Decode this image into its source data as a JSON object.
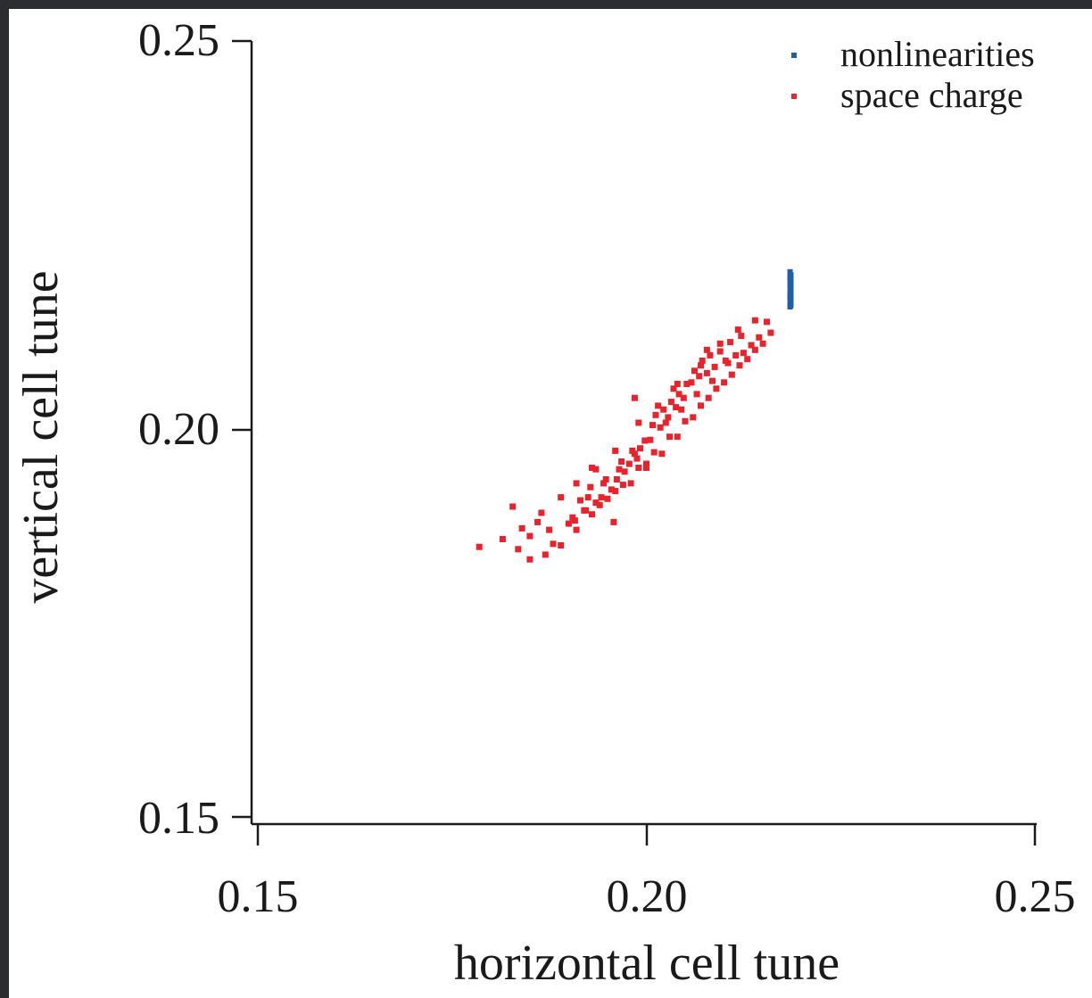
{
  "chart_data": {
    "type": "scatter",
    "title": "",
    "xlabel": "horizontal cell tune",
    "ylabel": "vertical cell tune",
    "xlim": [
      0.15,
      0.25
    ],
    "ylim": [
      0.15,
      0.25
    ],
    "xticks": [
      0.15,
      0.2,
      0.25
    ],
    "yticks": [
      0.15,
      0.2,
      0.25
    ],
    "xtick_labels": [
      "0.15",
      "0.20",
      "0.25"
    ],
    "ytick_labels": [
      "0.15",
      "0.20",
      "0.25"
    ],
    "grid": false,
    "legend_position": "top-right",
    "series": [
      {
        "name": "nonlinearities",
        "color": "#1f5fa8",
        "x": [
          0.2185,
          0.2185,
          0.2186,
          0.2185,
          0.2186,
          0.2185,
          0.2186,
          0.2185,
          0.2186,
          0.2185,
          0.2186,
          0.2185,
          0.2186,
          0.2185,
          0.2186,
          0.2185
        ],
        "y": [
          0.2158,
          0.2162,
          0.2166,
          0.217,
          0.2174,
          0.2178,
          0.2182,
          0.2186,
          0.219,
          0.2194,
          0.2198,
          0.2202,
          0.216,
          0.2172,
          0.2184,
          0.2196
        ]
      },
      {
        "name": "space charge",
        "color": "#e8232b",
        "x": [
          0.1785,
          0.1815,
          0.1835,
          0.185,
          0.186,
          0.188,
          0.185,
          0.19,
          0.192,
          0.194,
          0.196,
          0.198,
          0.2,
          0.202,
          0.204,
          0.206,
          0.208,
          0.21,
          0.212,
          0.214,
          0.216,
          0.215,
          0.213,
          0.211,
          0.209,
          0.207,
          0.205,
          0.203,
          0.201,
          0.199,
          0.197,
          0.195,
          0.193,
          0.191,
          0.189,
          0.187,
          0.1875,
          0.1905,
          0.1925,
          0.1945,
          0.1965,
          0.1985,
          0.2005,
          0.2025,
          0.2045,
          0.2065,
          0.2085,
          0.2105,
          0.2125,
          0.2145,
          0.2008,
          0.2012,
          0.2018,
          0.2022,
          0.2028,
          0.2032,
          0.2038,
          0.2042,
          0.2048,
          0.2052,
          0.1998,
          0.1992,
          0.1988,
          0.1982,
          0.1978,
          0.1972,
          0.1968,
          0.1962,
          0.2058,
          0.2062,
          0.2068,
          0.2072,
          0.2078,
          0.2082,
          0.2088,
          0.1955,
          0.1948,
          0.1942,
          0.1935,
          0.1928,
          0.1922,
          0.1915,
          0.1908,
          0.2095,
          0.2102,
          0.2108,
          0.2115,
          0.2122,
          0.2135,
          0.2155,
          0.1865,
          0.189,
          0.191,
          0.1935,
          0.196,
          0.199,
          0.2015,
          0.204,
          0.207,
          0.2095,
          0.2118,
          0.214,
          0.184,
          0.1828,
          0.1958,
          0.2,
          0.2035,
          0.2078,
          0.193,
          0.1985
        ],
        "y": [
          0.1848,
          0.1858,
          0.1845,
          0.1832,
          0.188,
          0.1852,
          0.1862,
          0.1878,
          0.1895,
          0.1902,
          0.192,
          0.193,
          0.195,
          0.1968,
          0.199,
          0.2015,
          0.204,
          0.206,
          0.2082,
          0.2102,
          0.2124,
          0.211,
          0.209,
          0.207,
          0.2052,
          0.203,
          0.201,
          0.199,
          0.197,
          0.195,
          0.1928,
          0.191,
          0.189,
          0.187,
          0.185,
          0.1838,
          0.187,
          0.1886,
          0.1912,
          0.193,
          0.1948,
          0.1968,
          0.1986,
          0.2008,
          0.2025,
          0.2045,
          0.2062,
          0.2085,
          0.2098,
          0.2118,
          0.2005,
          0.2018,
          0.2002,
          0.2025,
          0.2015,
          0.2035,
          0.2028,
          0.2045,
          0.204,
          0.2058,
          0.1985,
          0.1975,
          0.1962,
          0.1972,
          0.1955,
          0.1945,
          0.1958,
          0.1935,
          0.206,
          0.2075,
          0.2068,
          0.2088,
          0.2072,
          0.2095,
          0.208,
          0.1922,
          0.1935,
          0.1912,
          0.1905,
          0.1925,
          0.1895,
          0.1908,
          0.1882,
          0.21,
          0.2088,
          0.2112,
          0.2095,
          0.212,
          0.2108,
          0.2138,
          0.1892,
          0.1912,
          0.193,
          0.1948,
          0.1972,
          0.2008,
          0.203,
          0.2058,
          0.2082,
          0.211,
          0.2128,
          0.214,
          0.1872,
          0.19,
          0.188,
          0.1955,
          0.2052,
          0.2102,
          0.195,
          0.204
        ]
      }
    ]
  }
}
